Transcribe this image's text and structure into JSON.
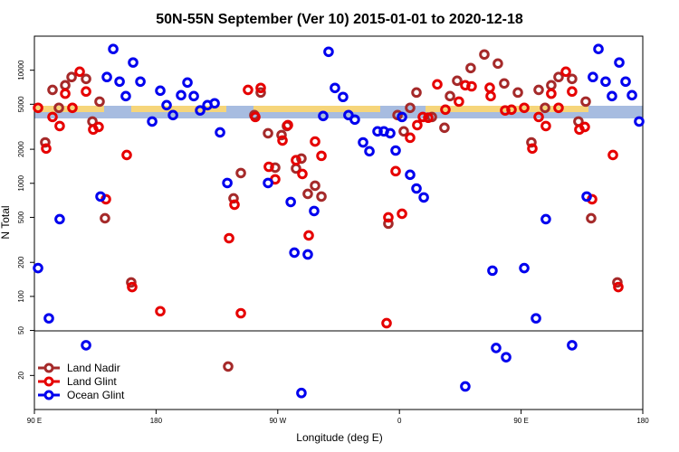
{
  "chart_data": {
    "type": "scatter",
    "title": "50N-55N September (Ver 10)   2015-01-01 to 2020-12-18",
    "xlabel": "Longitude (deg E)",
    "ylabel": "N Total",
    "xlim": [
      90,
      540
    ],
    "xticks": [
      {
        "value": 90,
        "label": "90 E"
      },
      180,
      {
        "value": 270,
        "label": "90 W"
      },
      {
        "value": 360,
        "label": "0"
      },
      {
        "value": 450,
        "label": "90 E"
      },
      {
        "value": 540,
        "label": "180"
      }
    ],
    "ylim": [
      10,
      20000
    ],
    "yticks": [
      20,
      50,
      100,
      200,
      500,
      1000,
      2000,
      5000,
      10000
    ],
    "log_y": true,
    "legend": "lower left",
    "series": [
      {
        "name": "Land Nadir",
        "color": "#a52a2a",
        "x": [
          98.0,
          103.4,
          108.1,
          112.8,
          117.5,
          128.2,
          132.9,
          138.2,
          142.2,
          161.6,
          233.3,
          237.3,
          242.7,
          252.7,
          257.4,
          262.8,
          268.1,
          272.8,
          276.8,
          283.5,
          287.5,
          292.2,
          297.6,
          302.3,
          351.8,
          358.6,
          363.2,
          367.9,
          372.6,
          384.0,
          393.3,
          397.4,
          402.7,
          412.7,
          422.8,
          432.8,
          437.5,
          447.6,
          457.6,
          463.0,
          467.7,
          472.3,
          477.7,
          487.7,
          492.4,
          497.8,
          501.8,
          521.2
        ],
        "values": [
          2300,
          6700,
          4650,
          7360,
          8700,
          8380,
          3520,
          5280,
          491,
          133,
          24,
          736,
          1233,
          4010,
          6350,
          2770,
          1377,
          2670,
          3210,
          1352,
          1655,
          807,
          953,
          764,
          440,
          4010,
          2880,
          4650,
          6350,
          3860,
          3100,
          5900,
          8070,
          10450,
          13770,
          11450,
          7640,
          6350,
          2300,
          6700,
          4650,
          7360,
          8700,
          8380,
          3520,
          5280,
          491,
          133
        ]
      },
      {
        "name": "Land Glint",
        "color": "#e60000",
        "x": [
          92.7,
          98.7,
          103.4,
          108.7,
          112.8,
          118.1,
          123.5,
          128.2,
          133.5,
          137.5,
          142.9,
          158.3,
          162.3,
          183.1,
          234.0,
          238.0,
          242.7,
          248.0,
          253.4,
          257.4,
          263.4,
          268.1,
          273.5,
          277.5,
          283.5,
          288.2,
          292.9,
          297.6,
          302.3,
          350.5,
          351.8,
          357.2,
          361.9,
          367.9,
          373.2,
          377.3,
          381.3,
          388.0,
          394.0,
          404.0,
          408.7,
          413.4,
          426.8,
          427.5,
          438.2,
          442.9,
          452.3,
          458.3,
          463.0,
          468.3,
          472.3,
          477.7,
          483.1,
          487.7,
          493.1,
          497.1,
          502.5,
          517.9,
          521.9
        ],
        "values": [
          4650,
          2030,
          3860,
          3210,
          6200,
          4650,
          9700,
          6480,
          2990,
          3150,
          723,
          1780,
          121,
          74,
          327,
          647,
          71,
          6700,
          3860,
          6970,
          1400,
          1084,
          2390,
          3270,
          1600,
          1210,
          346,
          2340,
          1750,
          58,
          500,
          1280,
          538,
          2530,
          3270,
          3860,
          3800,
          7500,
          4480,
          5280,
          7360,
          7200,
          7000,
          5900,
          4410,
          4480,
          4650,
          2030,
          3860,
          3210,
          6200,
          4650,
          9700,
          6480,
          2990,
          3150,
          723,
          1780,
          121
        ]
      },
      {
        "name": "Ocean Glint",
        "color": "#0000ee",
        "x": [
          92.7,
          100.7,
          108.7,
          128.2,
          138.9,
          143.6,
          148.3,
          153.0,
          157.6,
          163.0,
          168.4,
          177.1,
          183.1,
          187.8,
          192.5,
          198.5,
          203.2,
          207.9,
          212.6,
          218.0,
          223.3,
          227.3,
          232.7,
          262.8,
          279.6,
          282.3,
          292.2,
          296.9,
          303.6,
          307.6,
          312.3,
          318.3,
          322.3,
          327.0,
          333.1,
          337.8,
          343.8,
          348.5,
          353.2,
          357.2,
          361.9,
          367.9,
          372.6,
          378.0,
          287.5,
          408.7,
          428.8,
          431.5,
          438.9,
          452.3,
          461.0,
          468.3,
          487.7,
          498.5,
          503.1,
          507.2,
          512.5,
          517.2,
          522.6,
          527.3,
          532.0,
          537.3
        ],
        "values": [
          178,
          64,
          482,
          37,
          764,
          8700,
          15400,
          7930,
          5900,
          11700,
          7930,
          3520,
          6590,
          4910,
          4010,
          6010,
          7780,
          5900,
          4410,
          4910,
          5100,
          2820,
          1007,
          1007,
          684,
          244,
          235,
          569,
          3940,
          14550,
          6970,
          5800,
          4010,
          3660,
          2300,
          1920,
          2880,
          2880,
          2770,
          1950,
          3860,
          1190,
          900,
          750,
          14,
          16,
          169,
          35,
          29,
          178,
          64,
          482,
          37,
          764,
          8700,
          15400,
          7930,
          5900,
          11700,
          7930,
          6010,
          3520
        ]
      }
    ]
  }
}
